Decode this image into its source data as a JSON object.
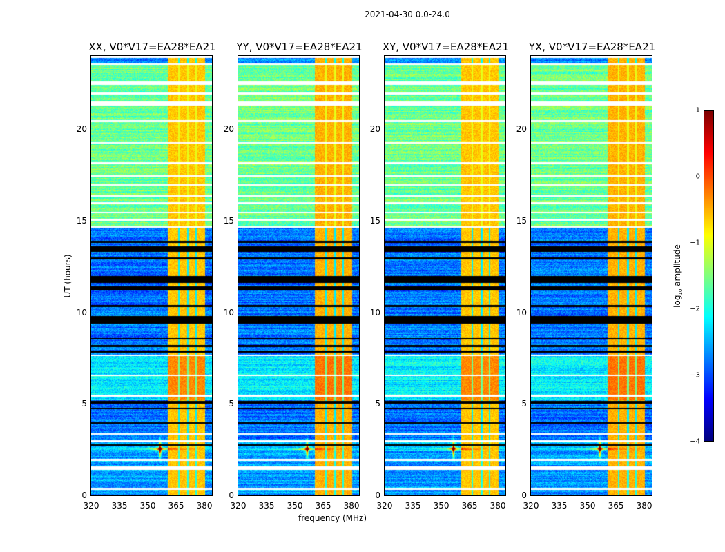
{
  "chart_data": {
    "type": "heatmap",
    "title": "2021-04-30 0.0-24.0",
    "xlabel": "frequency (MHz)",
    "ylabel": "UT (hours)",
    "xlim": [
      320,
      384
    ],
    "ylim": [
      0,
      24
    ],
    "xticks": [
      "320",
      "335",
      "350",
      "365",
      "380"
    ],
    "xtick_values": [
      320,
      335,
      350,
      365,
      380
    ],
    "yticks": [
      "0",
      "5",
      "10",
      "15",
      "20"
    ],
    "ytick_values": [
      0,
      5,
      10,
      15,
      20
    ],
    "panels": [
      {
        "title": "XX, V0*V17=EA28*EA21"
      },
      {
        "title": "YY, V0*V17=EA28*EA21"
      },
      {
        "title": "XY, V0*V17=EA28*EA21"
      },
      {
        "title": "YX, V0*V17=EA28*EA21"
      }
    ],
    "colorbar": {
      "label_prefix": "log",
      "label_sub": "10",
      "label_suffix": " amplitude",
      "range": [
        -4,
        1
      ],
      "ticks": [
        "1",
        "0",
        "−1",
        "−2",
        "−3",
        "−4"
      ],
      "tick_values": [
        1,
        0,
        -1,
        -2,
        -3,
        -4
      ],
      "colormap": "jet"
    },
    "time_segments": [
      {
        "start": 0,
        "end": 2.4,
        "level": -2.6
      },
      {
        "start": 2.4,
        "end": 3.0,
        "level": -2.4
      },
      {
        "start": 3.0,
        "end": 5.2,
        "level": -2.8
      },
      {
        "start": 5.2,
        "end": 7.7,
        "level": -2.2
      },
      {
        "start": 7.7,
        "end": 14.6,
        "level": -2.8
      },
      {
        "start": 14.6,
        "end": 23.5,
        "level": -1.6
      },
      {
        "start": 23.5,
        "end": 24,
        "level": -2.7
      }
    ],
    "flagged_black": [
      [
        2.7,
        2.8
      ],
      [
        3.9,
        4.0
      ],
      [
        4.7,
        4.8
      ],
      [
        5.0,
        5.15
      ],
      [
        7.8,
        7.9
      ],
      [
        8.1,
        8.2
      ],
      [
        8.5,
        8.6
      ],
      [
        9.4,
        9.8
      ],
      [
        10.3,
        10.4
      ],
      [
        11.2,
        11.4
      ],
      [
        11.6,
        12.0
      ],
      [
        12.9,
        13.0
      ],
      [
        13.3,
        13.6
      ],
      [
        13.8,
        13.9
      ]
    ],
    "gaps_white": [
      [
        0.3,
        0.4
      ],
      [
        1.4,
        1.6
      ],
      [
        1.9,
        2.0
      ],
      [
        2.9,
        3.0
      ],
      [
        3.3,
        3.4
      ],
      [
        5.4,
        5.5
      ],
      [
        6.5,
        6.6
      ],
      [
        7.6,
        7.7
      ],
      [
        14.6,
        14.7
      ],
      [
        15.0,
        15.1
      ],
      [
        15.4,
        15.5
      ],
      [
        15.9,
        16.0
      ],
      [
        16.3,
        16.4
      ],
      [
        16.9,
        17.0
      ],
      [
        17.4,
        17.5
      ],
      [
        18.1,
        18.2
      ],
      [
        19.2,
        19.3
      ],
      [
        20.4,
        20.5
      ],
      [
        21.3,
        21.5
      ],
      [
        21.9,
        22.0
      ],
      [
        22.4,
        22.6
      ],
      [
        23.5,
        23.6
      ],
      [
        23.9,
        24.0
      ]
    ],
    "bright_band": {
      "start": 360.5,
      "end": 380.5,
      "level": -0.6
    },
    "channel_gaps": [
      366.3,
      371.4,
      375.6
    ],
    "rfi_spike": {
      "freq": 356.5,
      "time": 2.55,
      "level": 1
    }
  }
}
